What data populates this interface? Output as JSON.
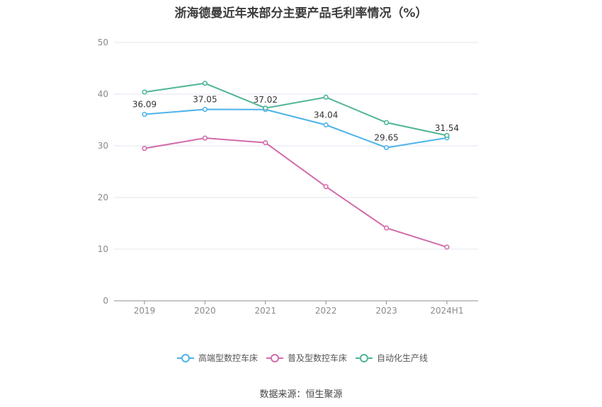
{
  "chart_data": {
    "type": "line",
    "title": "浙海德曼近年来部分主要产品毛利率情况（%）",
    "categories": [
      "2019",
      "2020",
      "2021",
      "2022",
      "2023",
      "2024H1"
    ],
    "ylim": [
      0,
      50
    ],
    "yticks": [
      0,
      10,
      20,
      30,
      40,
      50
    ],
    "grid": true,
    "legend_position": "bottom",
    "series": [
      {
        "name": "高端型数控车床",
        "color": "#4db3ea",
        "values": [
          36.09,
          37.05,
          37.02,
          34.04,
          29.65,
          31.54
        ],
        "labels": [
          "36.09",
          "37.05",
          "37.02",
          "34.04",
          "29.65",
          "31.54"
        ]
      },
      {
        "name": "普及型数控车床",
        "color": "#d36bab",
        "values": [
          29.5,
          31.5,
          30.6,
          22.1,
          14.1,
          10.4
        ]
      },
      {
        "name": "自动化生产线",
        "color": "#4fb597",
        "values": [
          40.4,
          42.1,
          37.3,
          39.4,
          34.5,
          32.0
        ]
      }
    ]
  },
  "source": "数据来源：恒生聚源"
}
